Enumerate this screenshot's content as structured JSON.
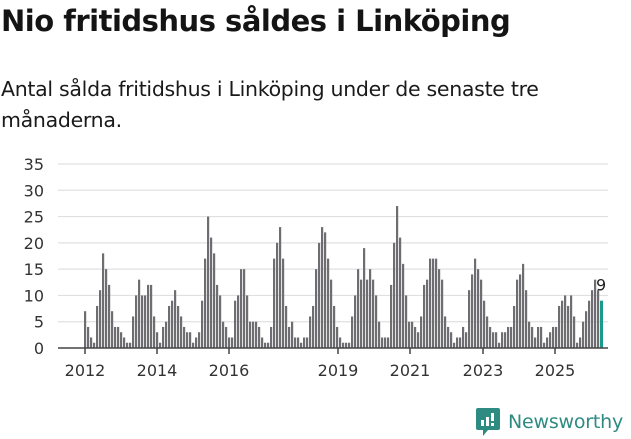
{
  "title": "Nio fritidshus såldes i Linköping",
  "subtitle": "Antal sålda fritidshus i Linköping under de senaste tre månaderna.",
  "logo": {
    "text": "Newsworthy",
    "color": "#2e8b82"
  },
  "chart_data": {
    "type": "bar",
    "title": "Nio fritidshus såldes i Linköping",
    "subtitle": "Antal sålda fritidshus i Linköping under de senaste tre månaderna.",
    "xlabel": "",
    "ylabel": "",
    "ylim": [
      0,
      35
    ],
    "yticks": [
      0,
      5,
      10,
      15,
      20,
      25,
      30,
      35
    ],
    "xticks": [
      "2012",
      "2014",
      "2016",
      "2019",
      "2021",
      "2023",
      "2025"
    ],
    "grid": true,
    "bar_color": "#6e6d72",
    "highlight_color": "#1a9a8c",
    "last_label": "9",
    "start": "2012-01",
    "frequency": "monthly",
    "values": [
      7,
      4,
      2,
      1,
      8,
      11,
      18,
      15,
      12,
      7,
      4,
      4,
      3,
      2,
      1,
      1,
      6,
      10,
      13,
      10,
      10,
      12,
      12,
      6,
      3,
      1,
      4,
      5,
      8,
      9,
      11,
      8,
      6,
      4,
      3,
      3,
      1,
      2,
      3,
      9,
      17,
      25,
      21,
      18,
      12,
      10,
      5,
      4,
      2,
      2,
      9,
      10,
      15,
      15,
      10,
      5,
      5,
      5,
      4,
      2,
      1,
      1,
      4,
      17,
      20,
      23,
      17,
      8,
      4,
      5,
      2,
      2,
      1,
      2,
      2,
      6,
      8,
      15,
      20,
      23,
      22,
      17,
      13,
      8,
      4,
      2,
      1,
      1,
      1,
      6,
      10,
      15,
      13,
      19,
      13,
      15,
      13,
      10,
      5,
      2,
      2,
      2,
      12,
      20,
      27,
      21,
      16,
      10,
      5,
      5,
      4,
      3,
      6,
      12,
      13,
      17,
      17,
      17,
      15,
      13,
      6,
      4,
      3,
      1,
      2,
      2,
      4,
      3,
      11,
      14,
      17,
      15,
      13,
      9,
      6,
      4,
      3,
      3,
      1,
      3,
      3,
      4,
      4,
      8,
      13,
      14,
      16,
      11,
      5,
      4,
      2,
      4,
      4,
      1,
      2,
      3,
      4,
      4,
      8,
      9,
      10,
      8,
      10,
      6,
      1,
      2,
      5,
      7,
      9,
      11,
      13,
      11,
      9
    ]
  }
}
